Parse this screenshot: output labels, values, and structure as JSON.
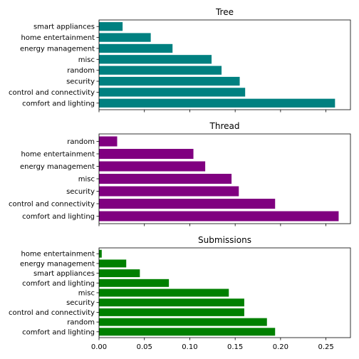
{
  "chart_data": [
    {
      "type": "bar",
      "orientation": "horizontal",
      "title": "Tree",
      "color": "#008080",
      "categories": [
        "comfort and lighting",
        "control and connectivity",
        "security",
        "random",
        "misc",
        "energy management",
        "home entertainment",
        "smart appliances"
      ],
      "values": [
        0.26,
        0.161,
        0.155,
        0.135,
        0.124,
        0.081,
        0.057,
        0.026
      ],
      "xlim": [
        0,
        0.277
      ],
      "show_xtick_labels": false
    },
    {
      "type": "bar",
      "orientation": "horizontal",
      "title": "Thread",
      "color": "#800080",
      "categories": [
        "comfort and lighting",
        "control and connectivity",
        "security",
        "misc",
        "energy management",
        "home entertainment",
        "random"
      ],
      "values": [
        0.264,
        0.194,
        0.154,
        0.146,
        0.117,
        0.104,
        0.02
      ],
      "xlim": [
        0,
        0.277
      ],
      "show_xtick_labels": false
    },
    {
      "type": "bar",
      "orientation": "horizontal",
      "title": "Submissions",
      "color": "#008000",
      "categories": [
        "comfort and lighting",
        "random",
        "control and connectivity",
        "security",
        "misc",
        "comfort and lighting",
        "smart appliances",
        "energy management",
        "home entertainment"
      ],
      "values": [
        0.194,
        0.185,
        0.16,
        0.16,
        0.143,
        0.077,
        0.045,
        0.03,
        0.003
      ],
      "xlim": [
        0,
        0.277
      ],
      "xticks": [
        0.0,
        0.05,
        0.1,
        0.15,
        0.2,
        0.25
      ],
      "xtick_labels": [
        "0.00",
        "0.05",
        "0.10",
        "0.15",
        "0.20",
        "0.25"
      ],
      "show_xtick_labels": true
    }
  ]
}
